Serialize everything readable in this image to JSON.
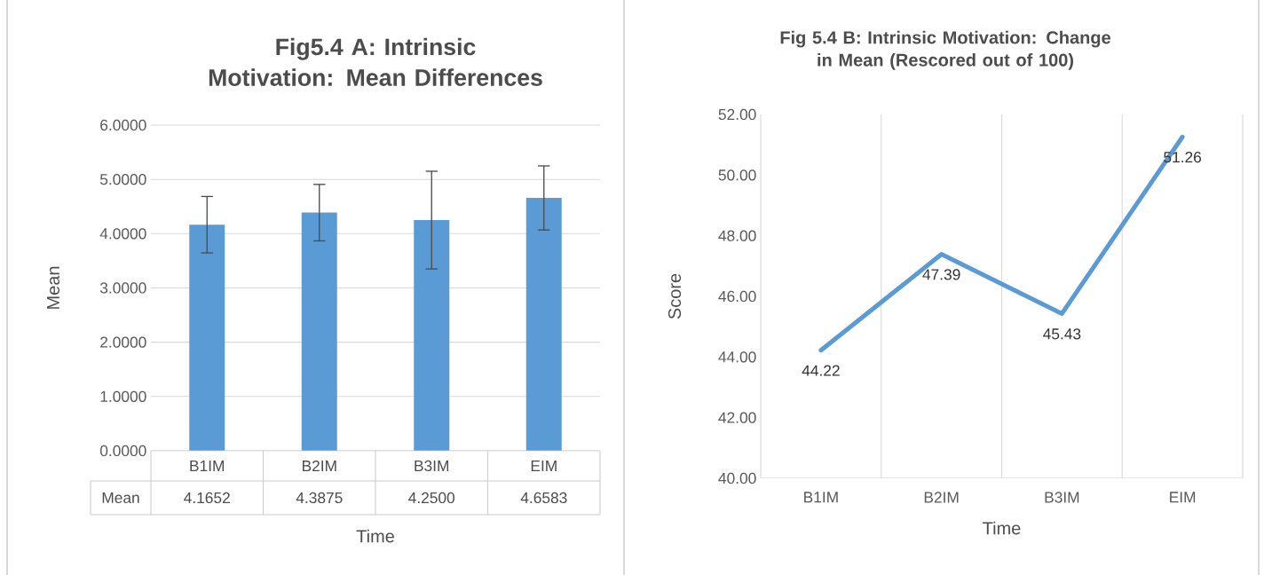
{
  "chart_data": [
    {
      "type": "bar",
      "title": "Fig5.4 A: Intrinsic Motivation: Mean Differences",
      "xlabel": "Time",
      "ylabel": "Mean",
      "categories": [
        "B1IM",
        "B2IM",
        "B3IM",
        "EIM"
      ],
      "series": [
        {
          "name": "Mean",
          "color": "#5b9bd5",
          "values": [
            4.1652,
            4.3875,
            4.25,
            4.6583
          ],
          "errors": [
            0.52,
            0.52,
            0.9,
            0.59
          ],
          "value_labels": [
            "4.1652",
            "4.3875",
            "4.2500",
            "4.6583"
          ]
        }
      ],
      "ylim": [
        0,
        6
      ],
      "yticks": [
        {
          "value": 0,
          "label": "0.0000"
        },
        {
          "value": 1,
          "label": "1.0000"
        },
        {
          "value": 2,
          "label": "2.0000"
        },
        {
          "value": 3,
          "label": "3.0000"
        },
        {
          "value": 4,
          "label": "4.0000"
        },
        {
          "value": 5,
          "label": "5.0000"
        },
        {
          "value": 6,
          "label": "6.0000"
        }
      ],
      "grid": "y"
    },
    {
      "type": "line",
      "title": "Fig 5.4 B: Intrinsic Motivation: Change in Mean (Rescored out of 100)",
      "xlabel": "Time",
      "ylabel": "Score",
      "categories": [
        "B1IM",
        "B2IM",
        "B3IM",
        "EIM"
      ],
      "series": [
        {
          "color": "#5b9bd5",
          "values": [
            44.22,
            47.39,
            45.43,
            51.26
          ],
          "value_labels": [
            "44.22",
            "47.39",
            "45.43",
            "51.26"
          ]
        }
      ],
      "ylim": [
        40,
        52
      ],
      "yticks": [
        {
          "value": 40,
          "label": "40.00"
        },
        {
          "value": 42,
          "label": "42.00"
        },
        {
          "value": 44,
          "label": "44.00"
        },
        {
          "value": 46,
          "label": "46.00"
        },
        {
          "value": 48,
          "label": "48.00"
        },
        {
          "value": 50,
          "label": "50.00"
        },
        {
          "value": 52,
          "label": "52.00"
        }
      ],
      "grid": "x"
    }
  ]
}
